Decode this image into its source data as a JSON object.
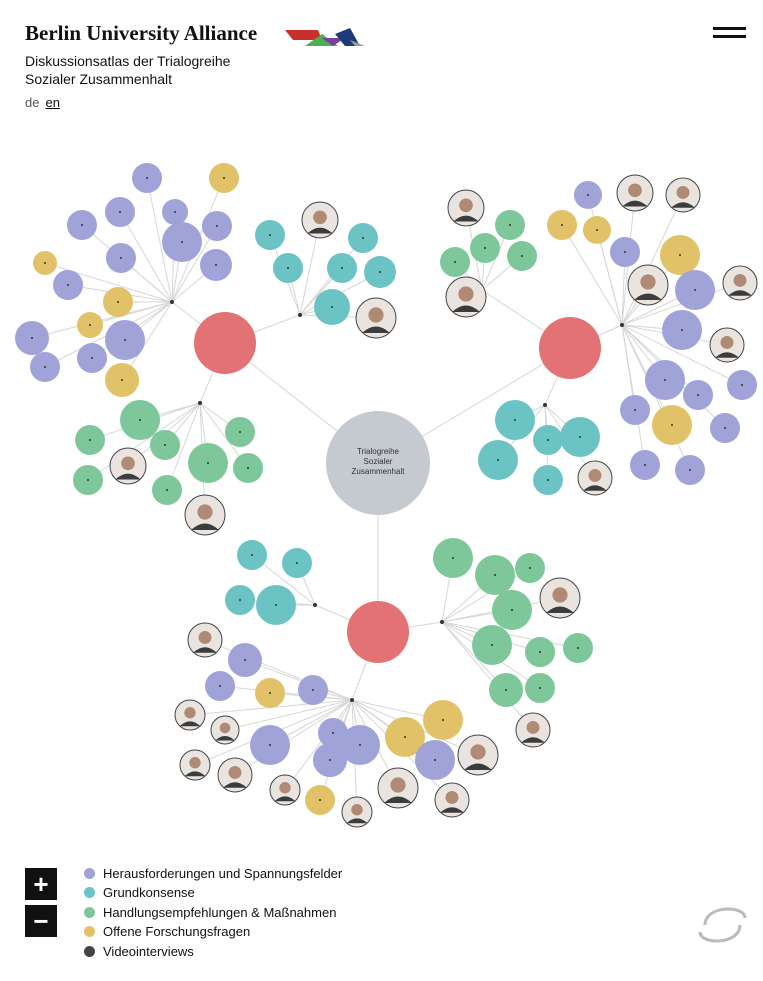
{
  "header": {
    "title": "Berlin University Alliance",
    "subtitle_lines": [
      "Diskussionsatlas der Trialogreihe",
      "Sozialer Zusammenhalt"
    ]
  },
  "languages": [
    "de",
    "en"
  ],
  "center": {
    "label_lines": [
      "Trialogreihe",
      "Sozialer",
      "Zusammenhalt"
    ]
  },
  "controls": {
    "zoom_in": "+",
    "zoom_out": "−"
  },
  "legend": {
    "items": [
      {
        "label": "Herausforderungen und Spannungsfelder",
        "color": "#9fa3d8"
      },
      {
        "label": "Grundkonsense",
        "color": "#6cc3c3"
      },
      {
        "label": "Handlungsempfehlungen & Maßnahmen",
        "color": "#7dc79a"
      },
      {
        "label": "Offene Forschungsfragen",
        "color": "#e2c269"
      },
      {
        "label": "Videointerviews",
        "color": "#444444"
      }
    ]
  }
}
